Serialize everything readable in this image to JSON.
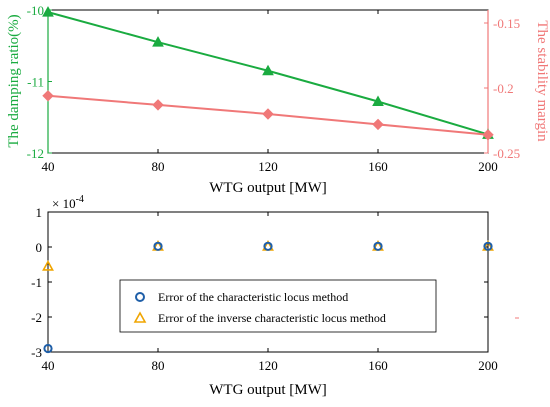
{
  "chart_data": [
    {
      "type": "line",
      "x": [
        40,
        80,
        120,
        160,
        200
      ],
      "xlabel": "WTG output [MW]",
      "x_ticks": [
        "40",
        "80",
        "120",
        "160",
        "200"
      ],
      "xlim": [
        40,
        200
      ],
      "ylabel": "The damping ratio(%)",
      "ylim": [
        -12,
        -10
      ],
      "y_ticks": [
        "-10",
        "-11",
        "-12"
      ],
      "y2label": "The stability margin",
      "y2lim": [
        -0.25,
        -0.14
      ],
      "y2_ticks": [
        "-0.15",
        "-0.2",
        "-0.25"
      ],
      "grid": false,
      "series": [
        {
          "axis": "left",
          "color": "#1aab40",
          "marker": "triangle",
          "values": [
            -10.03,
            -10.45,
            -10.85,
            -11.28,
            -11.74
          ]
        },
        {
          "axis": "right",
          "color": "#f07878",
          "marker": "diamond",
          "values": [
            -0.206,
            -0.213,
            -0.22,
            -0.228,
            -0.236
          ]
        }
      ]
    },
    {
      "type": "scatter",
      "x": [
        40,
        80,
        120,
        160,
        200
      ],
      "xlabel": "WTG output [MW]",
      "x_ticks": [
        "40",
        "80",
        "120",
        "160",
        "200"
      ],
      "xlim": [
        40,
        200
      ],
      "ylim": [
        -3,
        1
      ],
      "y_ticks": [
        "1",
        "0",
        "-1",
        "-2",
        "-3"
      ],
      "y_exponent": {
        "base": "× 10",
        "power": "-4"
      },
      "grid": false,
      "legend_position": "center",
      "series": [
        {
          "name": "Error of the characteristic locus method",
          "color": "#1f5fa8",
          "marker": "circle",
          "values": [
            -2.9,
            0.02,
            0.02,
            0.02,
            0.02
          ]
        },
        {
          "name": "Error of the inverse characteristic locus method",
          "color": "#f0a500",
          "marker": "triangle",
          "values": [
            -0.55,
            0.02,
            0.02,
            0.02,
            0.02
          ]
        }
      ]
    }
  ]
}
